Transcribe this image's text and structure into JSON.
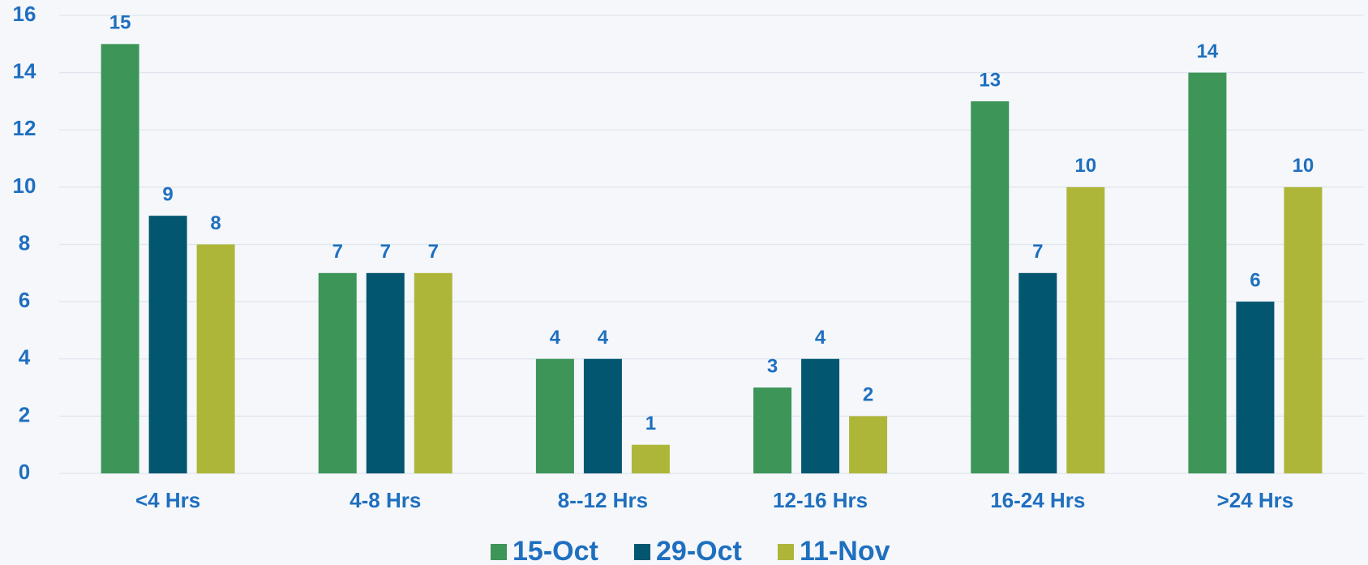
{
  "chart_data": {
    "type": "bar",
    "categories": [
      "<4 Hrs",
      "4-8 Hrs",
      "8--12 Hrs",
      "12-16 Hrs",
      "16-24 Hrs",
      ">24 Hrs"
    ],
    "series": [
      {
        "name": "15-Oct",
        "color": "#3d9558",
        "values": [
          15,
          7,
          4,
          3,
          13,
          14
        ]
      },
      {
        "name": "29-Oct",
        "color": "#03566f",
        "values": [
          9,
          7,
          4,
          4,
          7,
          6
        ]
      },
      {
        "name": "11-Nov",
        "color": "#aeb63a",
        "values": [
          8,
          7,
          1,
          2,
          10,
          10
        ]
      }
    ],
    "ylim": [
      0,
      16
    ],
    "yticks": [
      0,
      2,
      4,
      6,
      8,
      10,
      12,
      14,
      16
    ],
    "grid": true,
    "legend": "bottom"
  }
}
